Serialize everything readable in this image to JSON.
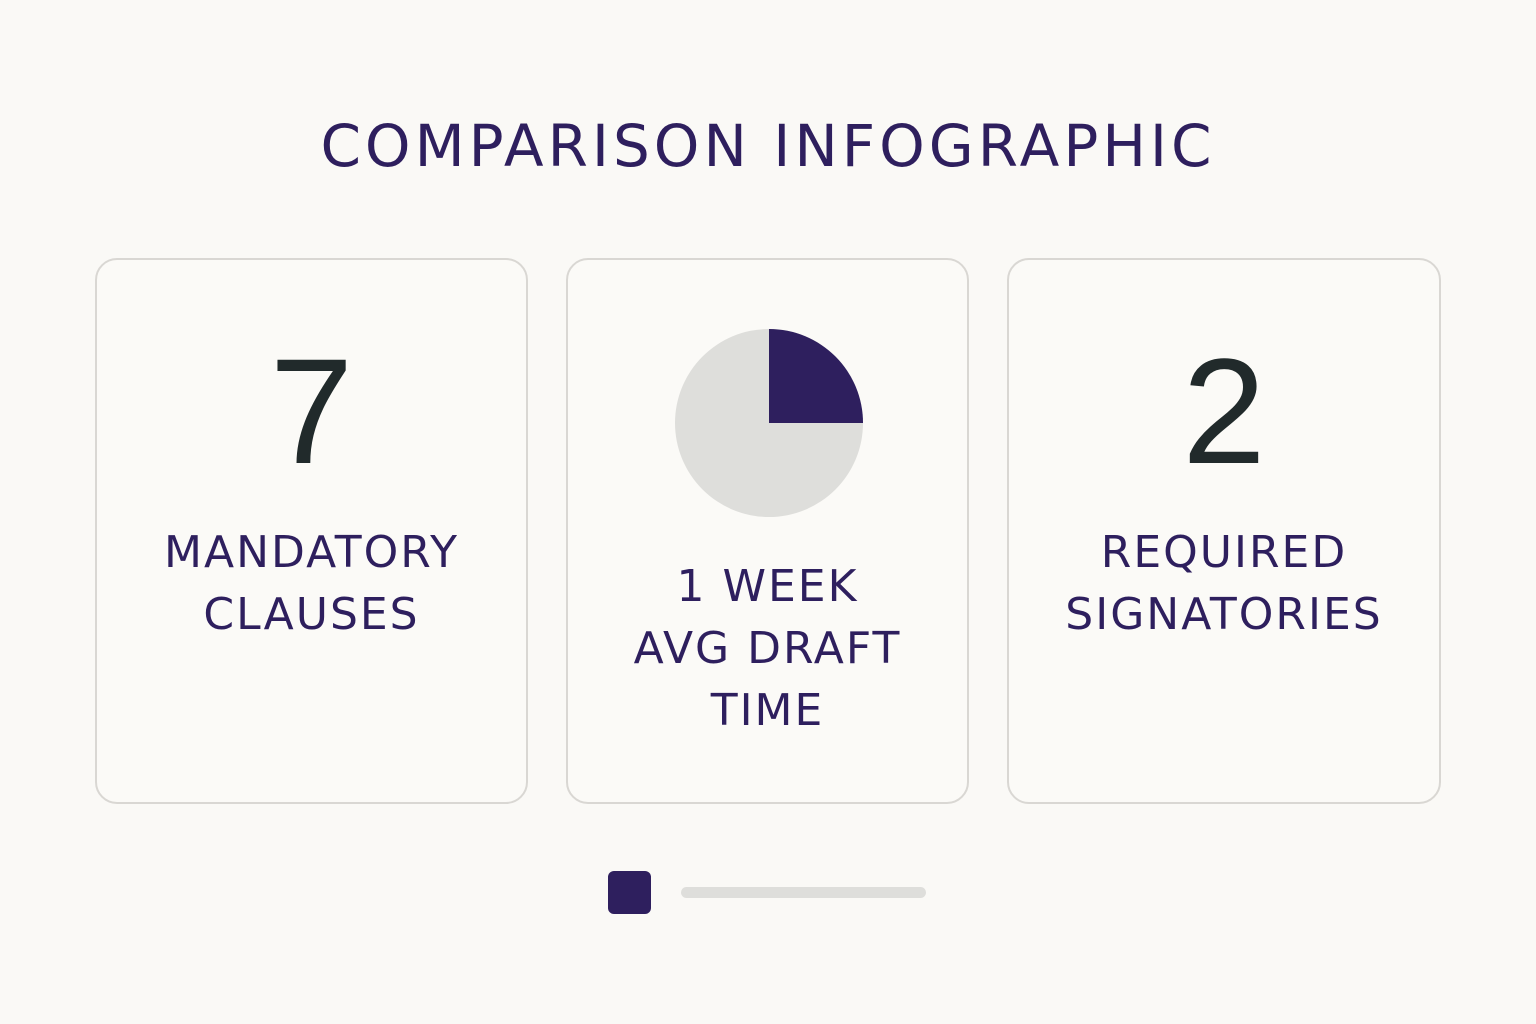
{
  "title": "COMPARISON INFOGRAPHIC",
  "cards": [
    {
      "value": "7",
      "label_lines": [
        "MANDATORY",
        "CLAUSES"
      ]
    },
    {
      "pie_fraction": 0.25,
      "label_lines": [
        "1 WEEK",
        "AVG DRAFT",
        "TIME"
      ]
    },
    {
      "value": "2",
      "label_lines": [
        "REQUIRED",
        "SIGNATORIES"
      ]
    }
  ],
  "colors": {
    "accent": "#2e1f5e",
    "pie_rest": "#dededb",
    "number": "#212a2b",
    "card_border": "#d9d7d3",
    "background": "#faf9f6"
  }
}
